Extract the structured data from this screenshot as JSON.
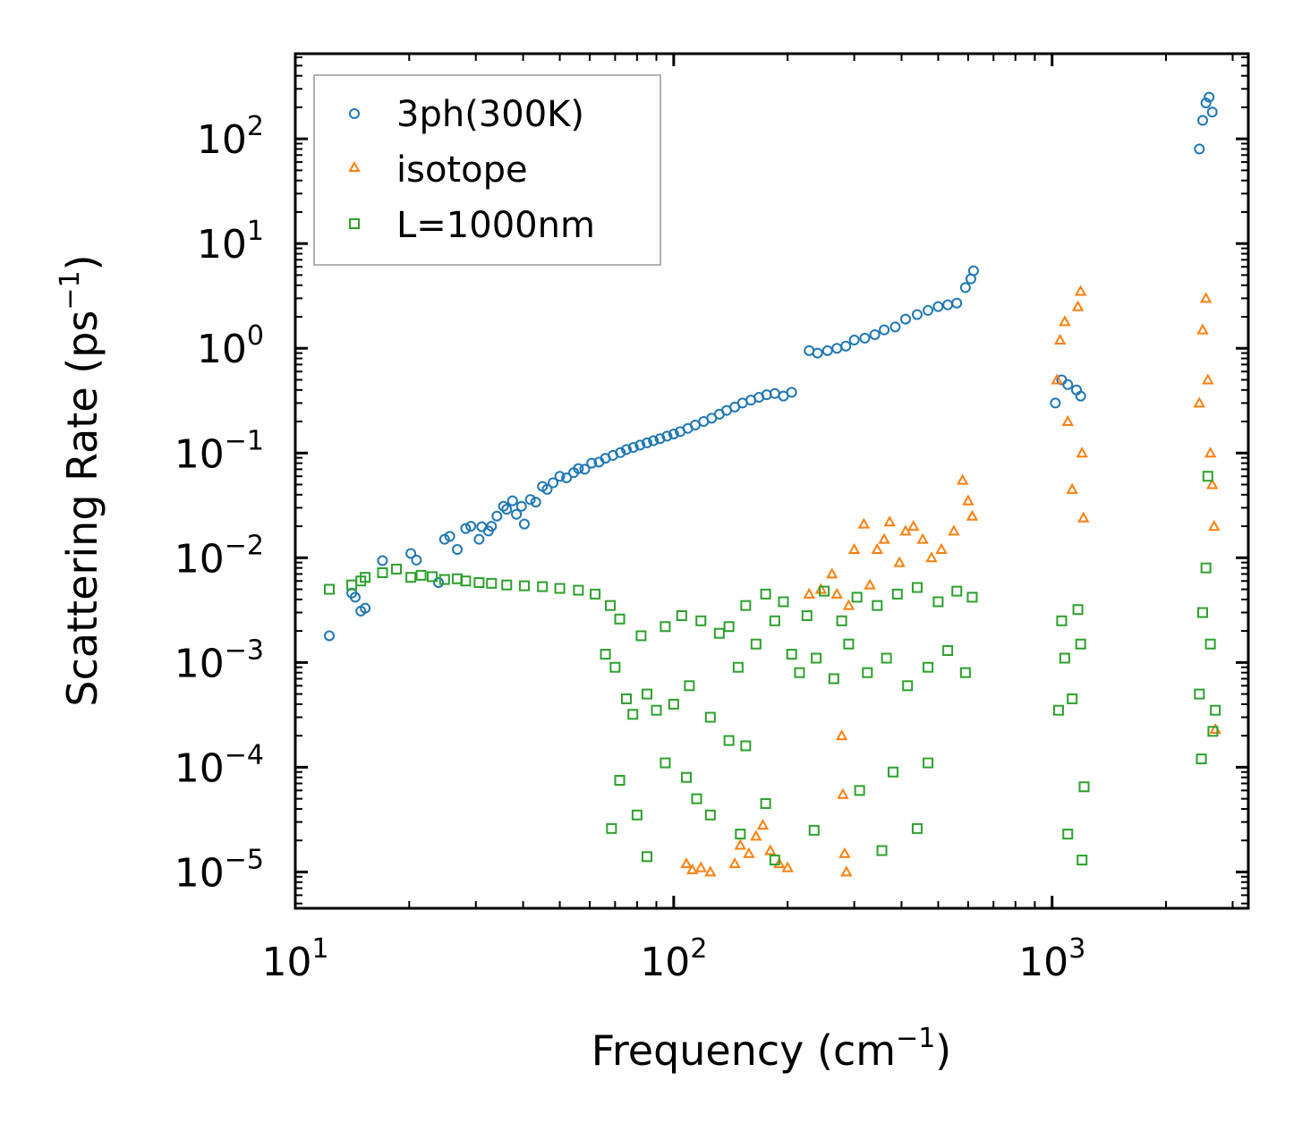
{
  "chart_data": {
    "type": "scatter",
    "title": "",
    "xlabel": "Frequency (cm",
    "xlabel_sup": "−1",
    "xlabel_tail": ")",
    "ylabel": "Scattering Rate (ps",
    "ylabel_sup": "−1",
    "ylabel_tail": ")",
    "xscale": "log",
    "yscale": "log",
    "xlim": [
      10,
      3300
    ],
    "ylim": [
      4.5e-06,
      650
    ],
    "x_ticks": [
      {
        "base": "10",
        "exp": "1",
        "value": 10
      },
      {
        "base": "10",
        "exp": "2",
        "value": 100
      },
      {
        "base": "10",
        "exp": "3",
        "value": 1000
      }
    ],
    "y_ticks": [
      {
        "base": "10",
        "exp": "2",
        "value": 100
      },
      {
        "base": "10",
        "exp": "1",
        "value": 10
      },
      {
        "base": "10",
        "exp": "0",
        "value": 1
      },
      {
        "base": "10",
        "exp": "−1",
        "value": 0.1
      },
      {
        "base": "10",
        "exp": "−2",
        "value": 0.01
      },
      {
        "base": "10",
        "exp": "−3",
        "value": 0.001
      },
      {
        "base": "10",
        "exp": "−4",
        "value": 0.0001
      },
      {
        "base": "10",
        "exp": "−5",
        "value": 1e-05
      }
    ],
    "legend_position": "top-left",
    "series": [
      {
        "name": "3ph(300K)",
        "marker": "circle",
        "color": "#1f77b4",
        "points": [
          [
            12.3,
            0.0018
          ],
          [
            14.1,
            0.0046
          ],
          [
            14.4,
            0.0042
          ],
          [
            14.9,
            0.0031
          ],
          [
            15.3,
            0.0033
          ],
          [
            17.0,
            0.0094
          ],
          [
            20.2,
            0.011
          ],
          [
            20.9,
            0.0095
          ],
          [
            23.9,
            0.0058
          ],
          [
            24.8,
            0.015
          ],
          [
            25.6,
            0.016
          ],
          [
            26.8,
            0.012
          ],
          [
            28.2,
            0.019
          ],
          [
            29.1,
            0.02
          ],
          [
            30.6,
            0.015
          ],
          [
            31.1,
            0.0198
          ],
          [
            32.4,
            0.018
          ],
          [
            33.0,
            0.02
          ],
          [
            34.1,
            0.025
          ],
          [
            35.5,
            0.031
          ],
          [
            36.2,
            0.029
          ],
          [
            37.5,
            0.035
          ],
          [
            38.4,
            0.026
          ],
          [
            39.6,
            0.031
          ],
          [
            40.3,
            0.021
          ],
          [
            41.8,
            0.036
          ],
          [
            43.2,
            0.034
          ],
          [
            45.0,
            0.048
          ],
          [
            46.3,
            0.045
          ],
          [
            48.0,
            0.052
          ],
          [
            50.0,
            0.06
          ],
          [
            52.1,
            0.058
          ],
          [
            54.4,
            0.065
          ],
          [
            56.0,
            0.071
          ],
          [
            58.2,
            0.07
          ],
          [
            60.7,
            0.08
          ],
          [
            63.5,
            0.082
          ],
          [
            66.0,
            0.089
          ],
          [
            69.1,
            0.095
          ],
          [
            72.3,
            0.101
          ],
          [
            75.0,
            0.108
          ],
          [
            78.2,
            0.113
          ],
          [
            81.5,
            0.119
          ],
          [
            85.0,
            0.125
          ],
          [
            88.4,
            0.131
          ],
          [
            92.0,
            0.137
          ],
          [
            96.0,
            0.145
          ],
          [
            100.0,
            0.152
          ],
          [
            104.0,
            0.16
          ],
          [
            109.0,
            0.172
          ],
          [
            114.0,
            0.185
          ],
          [
            120.0,
            0.2
          ],
          [
            126.0,
            0.215
          ],
          [
            132.0,
            0.235
          ],
          [
            138.0,
            0.255
          ],
          [
            145.0,
            0.275
          ],
          [
            152.0,
            0.3
          ],
          [
            160.0,
            0.32
          ],
          [
            168.0,
            0.34
          ],
          [
            176.0,
            0.36
          ],
          [
            185.0,
            0.37
          ],
          [
            195.0,
            0.35
          ],
          [
            205.0,
            0.38
          ],
          [
            228.0,
            0.95
          ],
          [
            240.0,
            0.9
          ],
          [
            255.0,
            0.95
          ],
          [
            270.0,
            1.0
          ],
          [
            285.0,
            1.05
          ],
          [
            300.0,
            1.2
          ],
          [
            320.0,
            1.25
          ],
          [
            340.0,
            1.35
          ],
          [
            360.0,
            1.5
          ],
          [
            385.0,
            1.6
          ],
          [
            410.0,
            1.9
          ],
          [
            440.0,
            2.1
          ],
          [
            470.0,
            2.3
          ],
          [
            500.0,
            2.5
          ],
          [
            530.0,
            2.6
          ],
          [
            560.0,
            2.7
          ],
          [
            590.0,
            3.8
          ],
          [
            610.0,
            4.6
          ],
          [
            620.0,
            5.5
          ],
          [
            1020.0,
            0.3
          ],
          [
            1060.0,
            0.5
          ],
          [
            1100.0,
            0.45
          ],
          [
            1160.0,
            0.4
          ],
          [
            1190.0,
            0.35
          ],
          [
            2450.0,
            80.0
          ],
          [
            2500.0,
            150.0
          ],
          [
            2550.0,
            220.0
          ],
          [
            2600.0,
            250.0
          ],
          [
            2650.0,
            180.0
          ]
        ]
      },
      {
        "name": "isotope",
        "marker": "triangle",
        "color": "#ff7f0e",
        "points": [
          [
            108.0,
            1.2e-05
          ],
          [
            112.0,
            1.05e-05
          ],
          [
            118.0,
            1.1e-05
          ],
          [
            125.0,
            1e-05
          ],
          [
            145.0,
            1.2e-05
          ],
          [
            150.0,
            1.8e-05
          ],
          [
            158.0,
            1.5e-05
          ],
          [
            165.0,
            2.2e-05
          ],
          [
            172.0,
            2.8e-05
          ],
          [
            180.0,
            1.6e-05
          ],
          [
            190.0,
            1.2e-05
          ],
          [
            200.0,
            1.1e-05
          ],
          [
            228.0,
            0.0045
          ],
          [
            245.0,
            0.005
          ],
          [
            262.0,
            0.007
          ],
          [
            270.0,
            0.0045
          ],
          [
            278.0,
            0.0002
          ],
          [
            280.0,
            5.5e-05
          ],
          [
            283.0,
            1.5e-05
          ],
          [
            286.0,
            1e-05
          ],
          [
            290.0,
            0.0035
          ],
          [
            300.0,
            0.012
          ],
          [
            318.0,
            0.021
          ],
          [
            330.0,
            0.0055
          ],
          [
            345.0,
            0.012
          ],
          [
            360.0,
            0.015
          ],
          [
            372.0,
            0.022
          ],
          [
            395.0,
            0.009
          ],
          [
            410.0,
            0.018
          ],
          [
            430.0,
            0.02
          ],
          [
            455.0,
            0.015
          ],
          [
            480.0,
            0.01
          ],
          [
            510.0,
            0.012
          ],
          [
            550.0,
            0.018
          ],
          [
            580.0,
            0.055
          ],
          [
            600.0,
            0.035
          ],
          [
            615.0,
            0.025
          ],
          [
            1030.0,
            0.5
          ],
          [
            1050.0,
            1.2
          ],
          [
            1080.0,
            1.8
          ],
          [
            1100.0,
            0.2
          ],
          [
            1130.0,
            0.045
          ],
          [
            1170.0,
            2.5
          ],
          [
            1190.0,
            3.5
          ],
          [
            1200.0,
            0.1
          ],
          [
            1210.0,
            0.024
          ],
          [
            2450.0,
            0.3
          ],
          [
            2500.0,
            1.5
          ],
          [
            2550.0,
            3.0
          ],
          [
            2580.0,
            0.5
          ],
          [
            2620.0,
            0.1
          ],
          [
            2650.0,
            0.05
          ],
          [
            2680.0,
            0.02
          ],
          [
            2700.0,
            0.00023
          ]
        ]
      },
      {
        "name": "L=1000nm",
        "marker": "square",
        "color": "#2ca02c",
        "points": [
          [
            12.3,
            0.005
          ],
          [
            14.1,
            0.0055
          ],
          [
            14.9,
            0.006
          ],
          [
            15.3,
            0.0065
          ],
          [
            17.0,
            0.0072
          ],
          [
            18.5,
            0.0078
          ],
          [
            20.2,
            0.0065
          ],
          [
            21.5,
            0.0068
          ],
          [
            23.0,
            0.0066
          ],
          [
            24.8,
            0.0062
          ],
          [
            26.8,
            0.0063
          ],
          [
            28.2,
            0.006
          ],
          [
            30.6,
            0.0058
          ],
          [
            33.0,
            0.0057
          ],
          [
            36.2,
            0.0055
          ],
          [
            40.3,
            0.0054
          ],
          [
            45.0,
            0.0053
          ],
          [
            50.0,
            0.0051
          ],
          [
            56.0,
            0.0049
          ],
          [
            62.0,
            0.0045
          ],
          [
            66.0,
            0.0012
          ],
          [
            68.0,
            0.0035
          ],
          [
            70.0,
            0.0009
          ],
          [
            72.0,
            0.0026
          ],
          [
            75.0,
            0.00045
          ],
          [
            78.0,
            0.00032
          ],
          [
            82.0,
            0.0018
          ],
          [
            85.0,
            0.0005
          ],
          [
            90.0,
            0.00035
          ],
          [
            95.0,
            0.0022
          ],
          [
            100.0,
            0.0004
          ],
          [
            105.0,
            0.0028
          ],
          [
            110.0,
            0.0006
          ],
          [
            118.0,
            0.0025
          ],
          [
            125.0,
            0.0003
          ],
          [
            132.0,
            0.0019
          ],
          [
            140.0,
            0.0022
          ],
          [
            148.0,
            0.0009
          ],
          [
            155.0,
            0.0035
          ],
          [
            165.0,
            0.0015
          ],
          [
            175.0,
            0.0045
          ],
          [
            185.0,
            0.0025
          ],
          [
            195.0,
            0.0038
          ],
          [
            205.0,
            0.0012
          ],
          [
            215.0,
            0.0008
          ],
          [
            225.0,
            0.0028
          ],
          [
            238.0,
            0.0011
          ],
          [
            250.0,
            0.0048
          ],
          [
            265.0,
            0.0007
          ],
          [
            278.0,
            0.0025
          ],
          [
            290.0,
            0.0015
          ],
          [
            305.0,
            0.0042
          ],
          [
            325.0,
            0.0008
          ],
          [
            345.0,
            0.0035
          ],
          [
            365.0,
            0.0011
          ],
          [
            390.0,
            0.0045
          ],
          [
            415.0,
            0.0006
          ],
          [
            440.0,
            0.0052
          ],
          [
            470.0,
            0.0009
          ],
          [
            500.0,
            0.0038
          ],
          [
            530.0,
            0.0013
          ],
          [
            560.0,
            0.0048
          ],
          [
            590.0,
            0.0008
          ],
          [
            615.0,
            0.0042
          ],
          [
            68.5,
            2.6e-05
          ],
          [
            72.0,
            7.5e-05
          ],
          [
            80.0,
            3.5e-05
          ],
          [
            85.0,
            1.4e-05
          ],
          [
            95.0,
            0.00011
          ],
          [
            108.0,
            8e-05
          ],
          [
            115.0,
            5e-05
          ],
          [
            125.0,
            3.5e-05
          ],
          [
            140.0,
            0.00018
          ],
          [
            150.0,
            2.3e-05
          ],
          [
            155.0,
            0.00016
          ],
          [
            175.0,
            4.5e-05
          ],
          [
            185.0,
            1.3e-05
          ],
          [
            235.0,
            2.5e-05
          ],
          [
            310.0,
            6e-05
          ],
          [
            355.0,
            1.6e-05
          ],
          [
            380.0,
            9e-05
          ],
          [
            440.0,
            2.6e-05
          ],
          [
            470.0,
            0.00011
          ],
          [
            1040.0,
            0.00035
          ],
          [
            1060.0,
            0.0025
          ],
          [
            1080.0,
            0.0011
          ],
          [
            1100.0,
            2.3e-05
          ],
          [
            1130.0,
            0.00045
          ],
          [
            1170.0,
            0.0032
          ],
          [
            1190.0,
            0.0015
          ],
          [
            1200.0,
            1.3e-05
          ],
          [
            1215.0,
            6.5e-05
          ],
          [
            2450.0,
            0.0005
          ],
          [
            2480.0,
            0.00012
          ],
          [
            2500.0,
            0.003
          ],
          [
            2550.0,
            0.008
          ],
          [
            2580.0,
            0.06
          ],
          [
            2620.0,
            0.0015
          ],
          [
            2660.0,
            0.00022
          ],
          [
            2700.0,
            0.00035
          ]
        ]
      }
    ]
  }
}
